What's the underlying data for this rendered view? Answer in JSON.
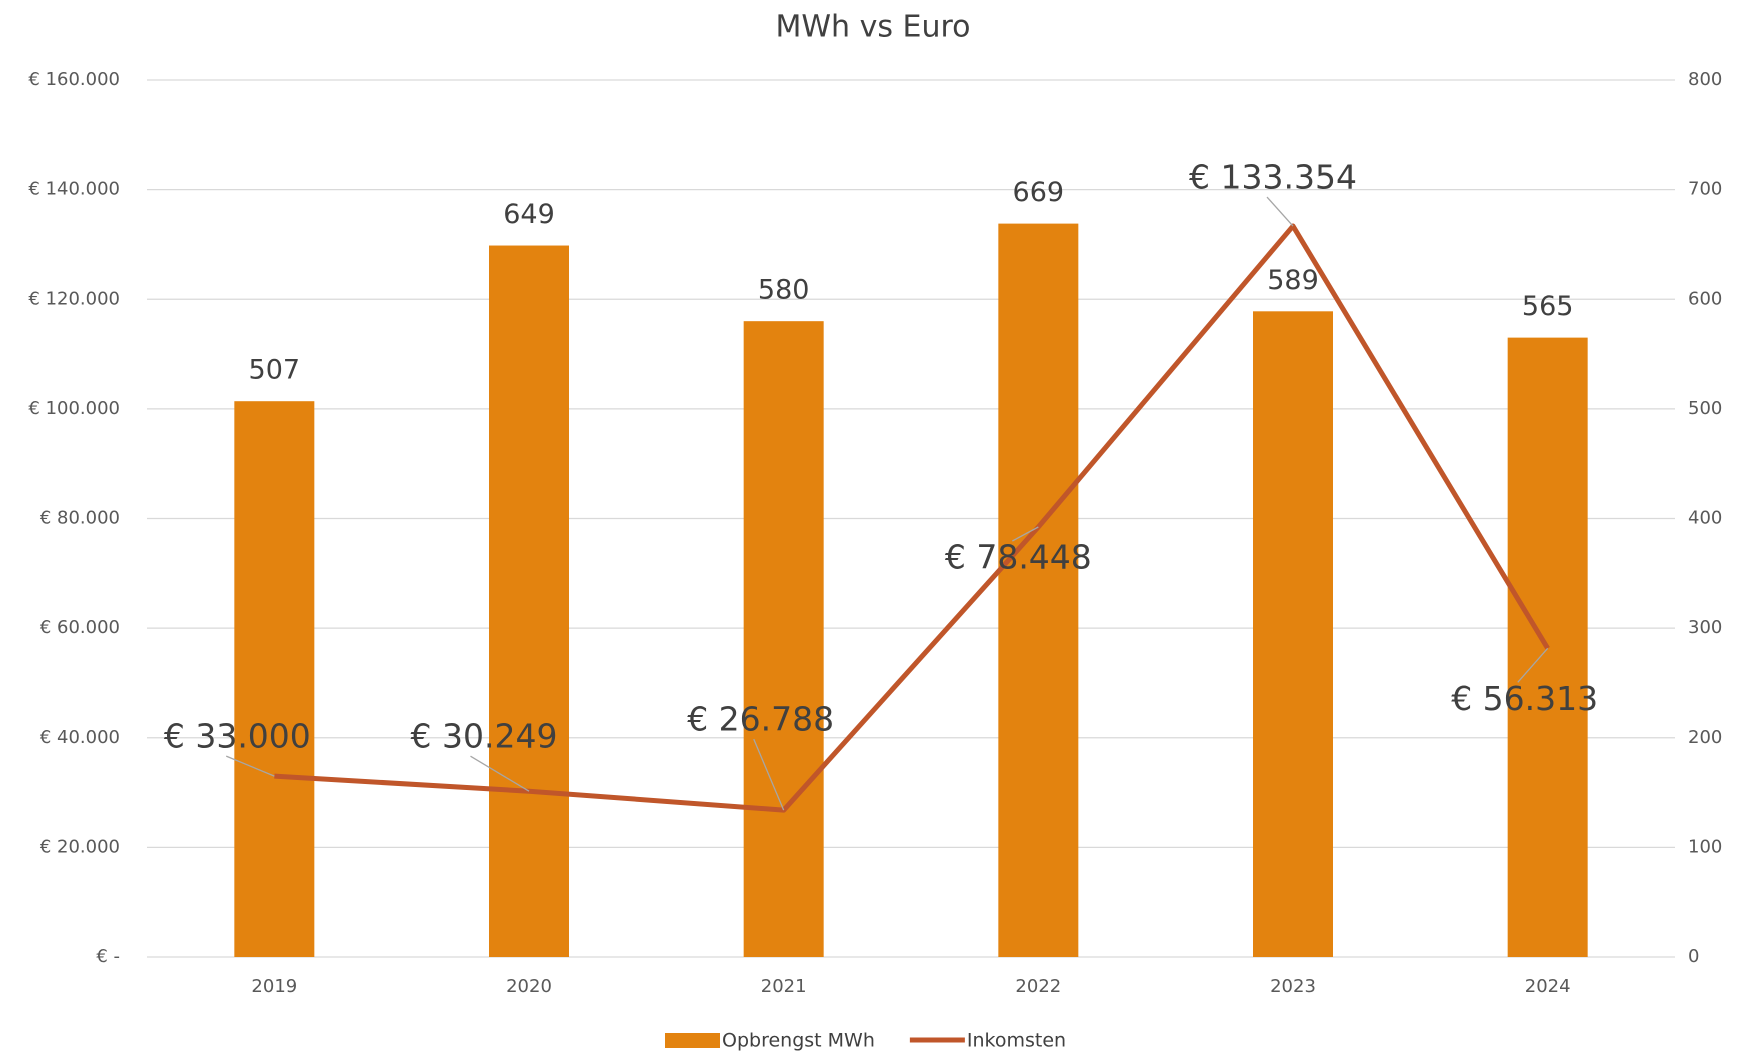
{
  "chart_data": {
    "type": "combo",
    "title": "MWh vs Euro",
    "categories": [
      "2019",
      "2020",
      "2021",
      "2022",
      "2023",
      "2024"
    ],
    "series": [
      {
        "name": "Opbrengst MWh",
        "type": "bar",
        "axis": "y2",
        "color": "#e3830f",
        "values": [
          507,
          649,
          580,
          669,
          589,
          565
        ]
      },
      {
        "name": "Inkomsten",
        "type": "line",
        "axis": "y",
        "color": "#c0562a",
        "values": [
          33000,
          30249,
          26788,
          78448,
          133354,
          56313
        ],
        "value_labels": [
          "€ 33.000",
          "€ 30.249",
          "€ 26.788",
          "€ 78.448",
          "€ 133.354",
          "€ 56.313"
        ]
      }
    ],
    "ylim": [
      0,
      160000
    ],
    "yticks": [
      {
        "value": 0,
        "label": "€ -"
      },
      {
        "value": 20000,
        "label": "€ 20.000"
      },
      {
        "value": 40000,
        "label": "€ 40.000"
      },
      {
        "value": 60000,
        "label": "€ 60.000"
      },
      {
        "value": 80000,
        "label": "€ 80.000"
      },
      {
        "value": 100000,
        "label": "€ 100.000"
      },
      {
        "value": 120000,
        "label": "€ 120.000"
      },
      {
        "value": 140000,
        "label": "€ 140.000"
      },
      {
        "value": 160000,
        "label": "€ 160.000"
      }
    ],
    "y2lim": [
      0,
      800
    ],
    "y2ticks": [
      0,
      100,
      200,
      300,
      400,
      500,
      600,
      700,
      800
    ],
    "grid": true,
    "legend": "bottom"
  }
}
